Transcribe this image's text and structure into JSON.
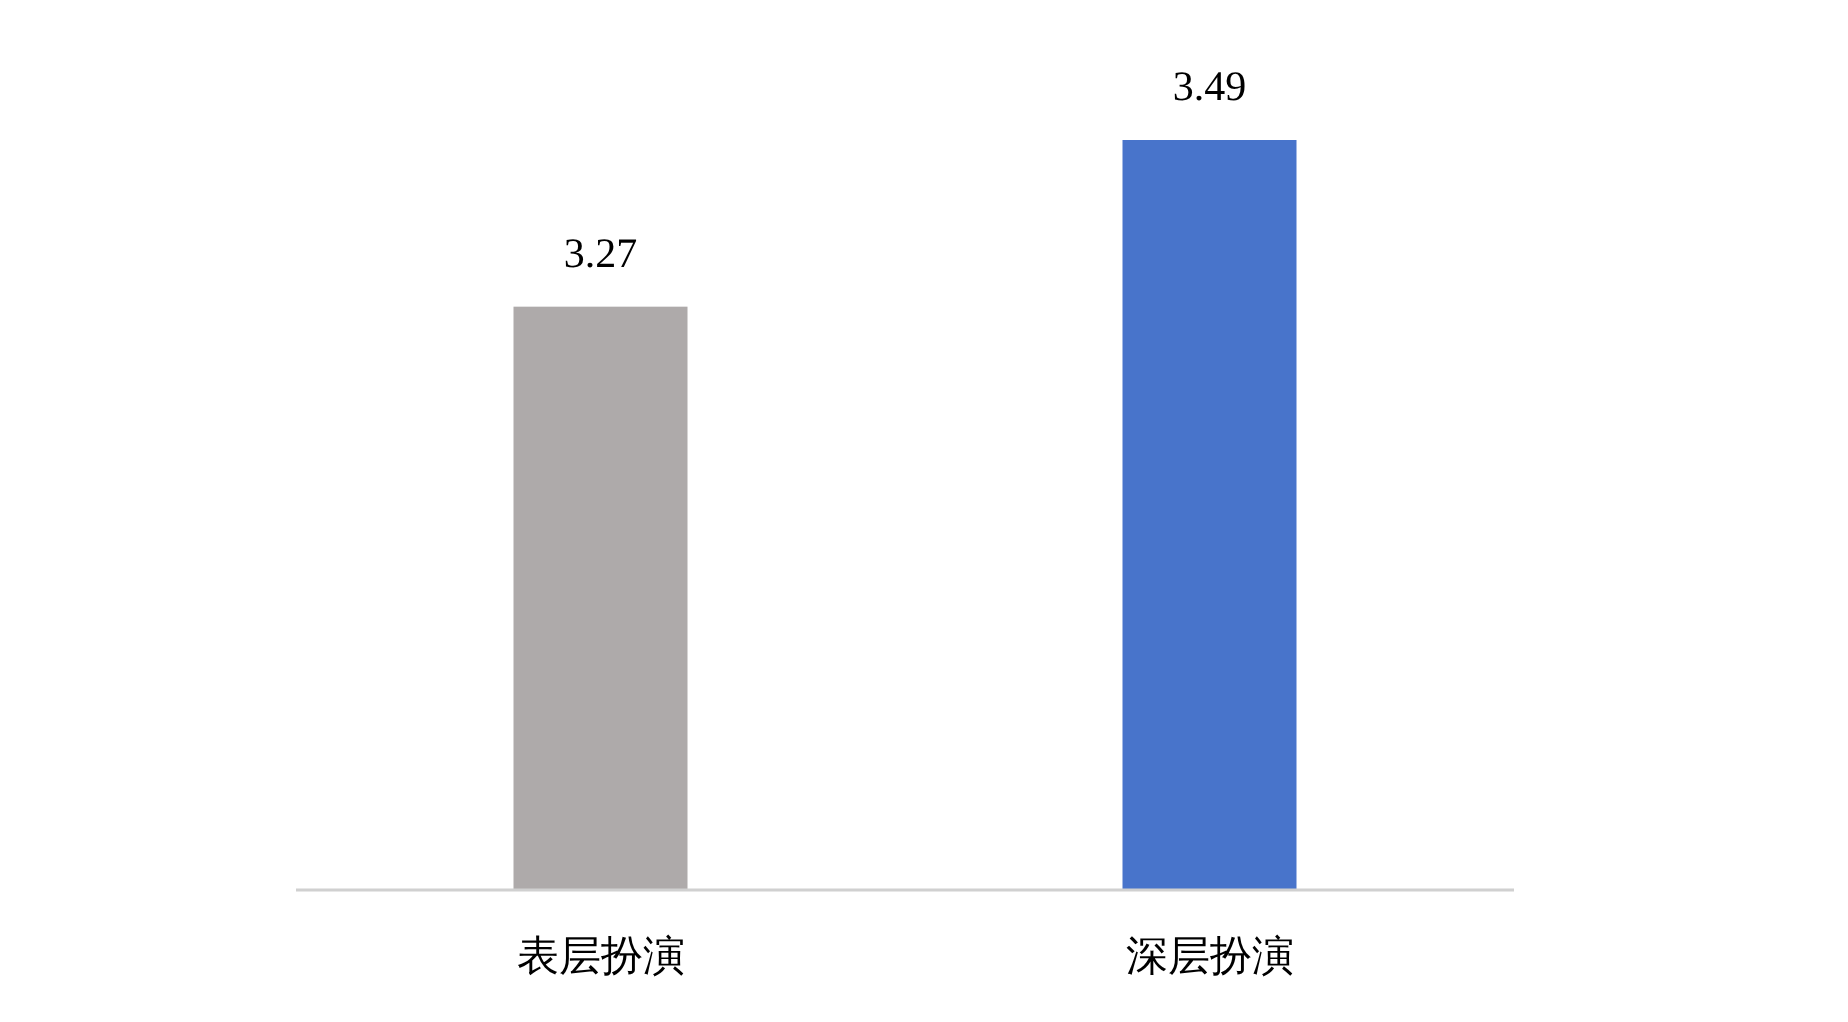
{
  "chart_data": {
    "type": "bar",
    "categories": [
      "表层扮演",
      "深层扮演"
    ],
    "values": [
      3.27,
      3.49
    ],
    "colors": [
      "#aeaaaa",
      "#4874cb"
    ],
    "ylim": [
      2.5,
      3.49
    ],
    "data_labels": true
  }
}
